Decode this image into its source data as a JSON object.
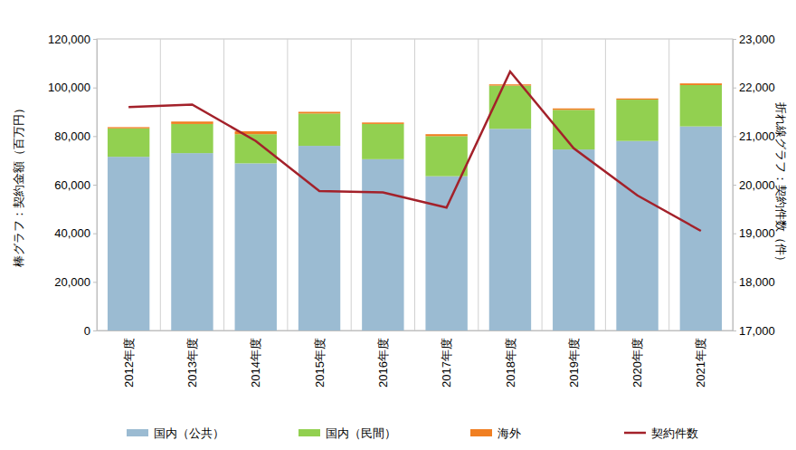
{
  "chart_data": {
    "type": "bar",
    "stacked": true,
    "grid": true,
    "legend": "bottom",
    "y_label": "棒グラフ：契約金額（百万円）",
    "y2_label": "折れ線グラフ：契約件数（件）",
    "categories": [
      "2012年度",
      "2013年度",
      "2014年度",
      "2015年度",
      "2016年度",
      "2017年度",
      "2018年度",
      "2019年度",
      "2020年度",
      "2021年度"
    ],
    "series": [
      {
        "name": "国内（公共）",
        "type": "bar",
        "color": "#9bbbd2",
        "values": [
          71500,
          73000,
          68800,
          76000,
          70500,
          63500,
          83000,
          74500,
          78000,
          84000
        ]
      },
      {
        "name": "国内（民間）",
        "type": "bar",
        "color": "#92d050",
        "values": [
          11700,
          12000,
          12000,
          13300,
          14500,
          16500,
          17800,
          16300,
          17000,
          17000
        ]
      },
      {
        "name": "海外",
        "type": "bar",
        "color": "#f07f22",
        "values": [
          500,
          1000,
          1200,
          700,
          600,
          800,
          500,
          600,
          500,
          700
        ]
      },
      {
        "name": "契約件数",
        "type": "line",
        "axis": "y2",
        "color": "#a3212a",
        "values": [
          21600,
          21650,
          20900,
          19870,
          19840,
          19530,
          22330,
          20750,
          19780,
          19050
        ]
      }
    ],
    "ylim": [
      0,
      120000
    ],
    "yticks": [
      0,
      {
        "value": 20000,
        "label": "20,000"
      },
      {
        "value": 40000,
        "label": "40,000"
      },
      {
        "value": 60000,
        "label": "60,000"
      },
      {
        "value": 80000,
        "label": "80,000"
      },
      {
        "value": 100000,
        "label": "100,000"
      },
      {
        "value": 120000,
        "label": "120,000"
      }
    ],
    "y2lim": [
      17000,
      23000
    ],
    "y2ticks": [
      {
        "value": 17000,
        "label": "17,000"
      },
      {
        "value": 18000,
        "label": "18,000"
      },
      {
        "value": 19000,
        "label": "19,000"
      },
      {
        "value": 20000,
        "label": "20,000"
      },
      {
        "value": 21000,
        "label": "21,000"
      },
      {
        "value": 22000,
        "label": "22,000"
      },
      {
        "value": 23000,
        "label": "23,000"
      }
    ]
  }
}
